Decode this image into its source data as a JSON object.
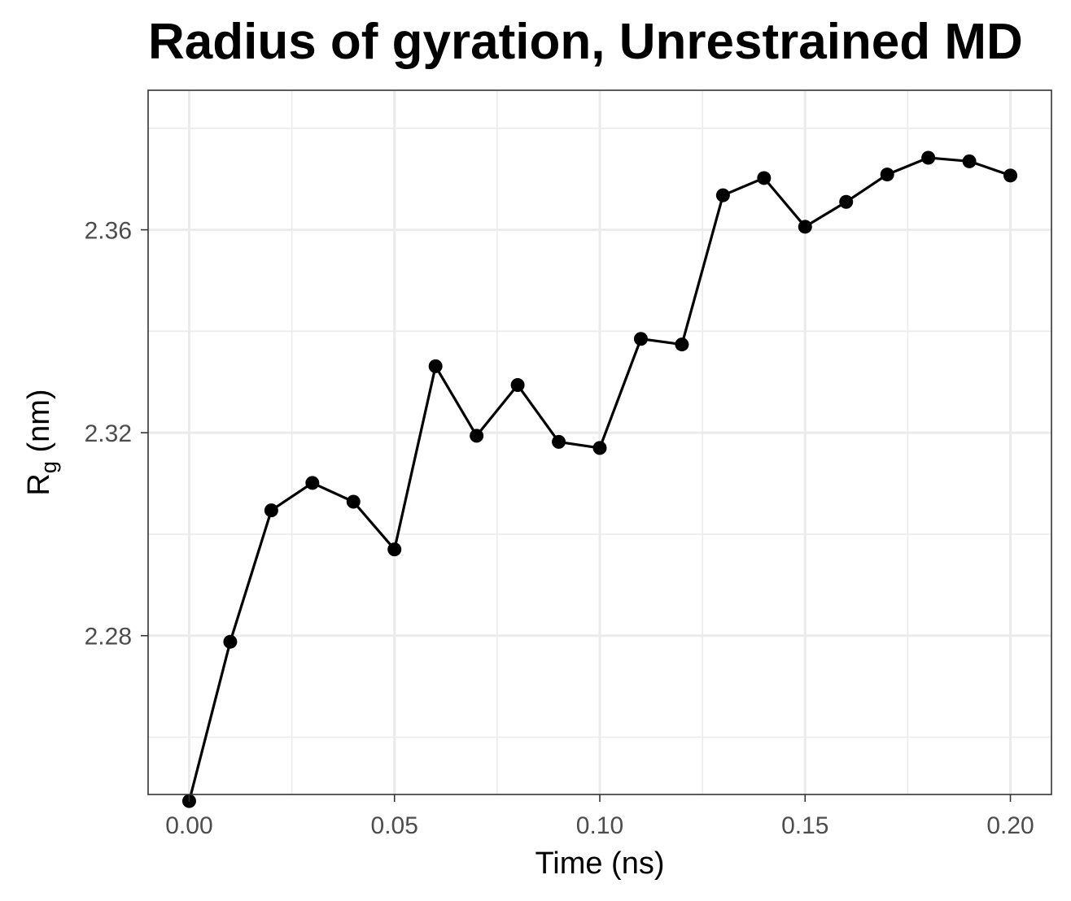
{
  "chart_data": {
    "type": "line",
    "title": "Radius of gyration, Unrestrained MD",
    "xlabel": "Time (ns)",
    "ylabel": {
      "main": "R",
      "subscript": "g",
      "suffix": " (nm)"
    },
    "xlim": [
      -0.01,
      0.21
    ],
    "ylim": [
      2.2487,
      2.3875
    ],
    "x_ticks": [
      0.0,
      0.05,
      0.1,
      0.15,
      0.2
    ],
    "x_tick_labels": [
      "0.00",
      "0.05",
      "0.10",
      "0.15",
      "0.20"
    ],
    "y_ticks": [
      2.28,
      2.32,
      2.36
    ],
    "y_tick_labels": [
      "2.28",
      "2.32",
      "2.36"
    ],
    "grid": true,
    "legend": "none",
    "series": [
      {
        "color": "#000000",
        "x": [
          0.0,
          0.01,
          0.02,
          0.03,
          0.04,
          0.05,
          0.06,
          0.07,
          0.08,
          0.09,
          0.1,
          0.11,
          0.12,
          0.13,
          0.14,
          0.15,
          0.16,
          0.17,
          0.18,
          0.19,
          0.2
        ],
        "y": [
          2.2474,
          2.2788,
          2.3047,
          2.3101,
          2.3064,
          2.297,
          2.3331,
          2.3194,
          2.3294,
          2.3182,
          2.317,
          2.3385,
          2.3374,
          2.3668,
          2.3702,
          2.3606,
          2.3655,
          2.3709,
          2.3742,
          2.3735,
          2.3707
        ]
      }
    ]
  }
}
